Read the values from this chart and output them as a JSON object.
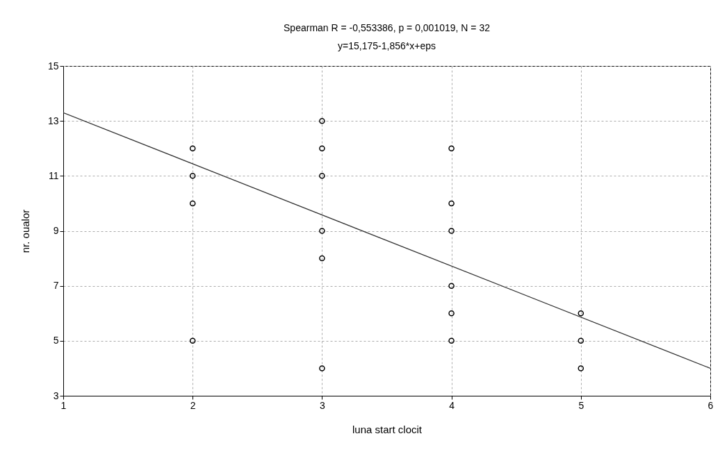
{
  "chart_data": {
    "type": "scatter",
    "title": "Spearman R = -0,553386, p = 0,001019, N = 32",
    "subtitle": "y=15,175-1,856*x+eps",
    "xlabel": "luna start clocit",
    "ylabel": "nr. oualor",
    "xlim": [
      1,
      6
    ],
    "xticks": [
      1,
      2,
      3,
      4,
      5,
      6
    ],
    "ylim": [
      3,
      15
    ],
    "yticks": [
      3,
      5,
      7,
      9,
      11,
      13,
      15
    ],
    "grid": true,
    "series": [
      {
        "marker": "circle",
        "color": "#000000",
        "x": [
          2,
          2,
          2,
          2,
          3,
          3,
          3,
          3,
          3,
          3,
          4,
          4,
          4,
          4,
          4,
          4,
          5,
          5,
          5
        ],
        "values": [
          12,
          11,
          10,
          5,
          13,
          12,
          11,
          9,
          8,
          4,
          12,
          10,
          9,
          7,
          6,
          5,
          6,
          5,
          4
        ]
      },
      {
        "type": "line",
        "color": "#333333",
        "x": [
          1,
          6
        ],
        "values": [
          13.3,
          4.0
        ]
      }
    ]
  }
}
